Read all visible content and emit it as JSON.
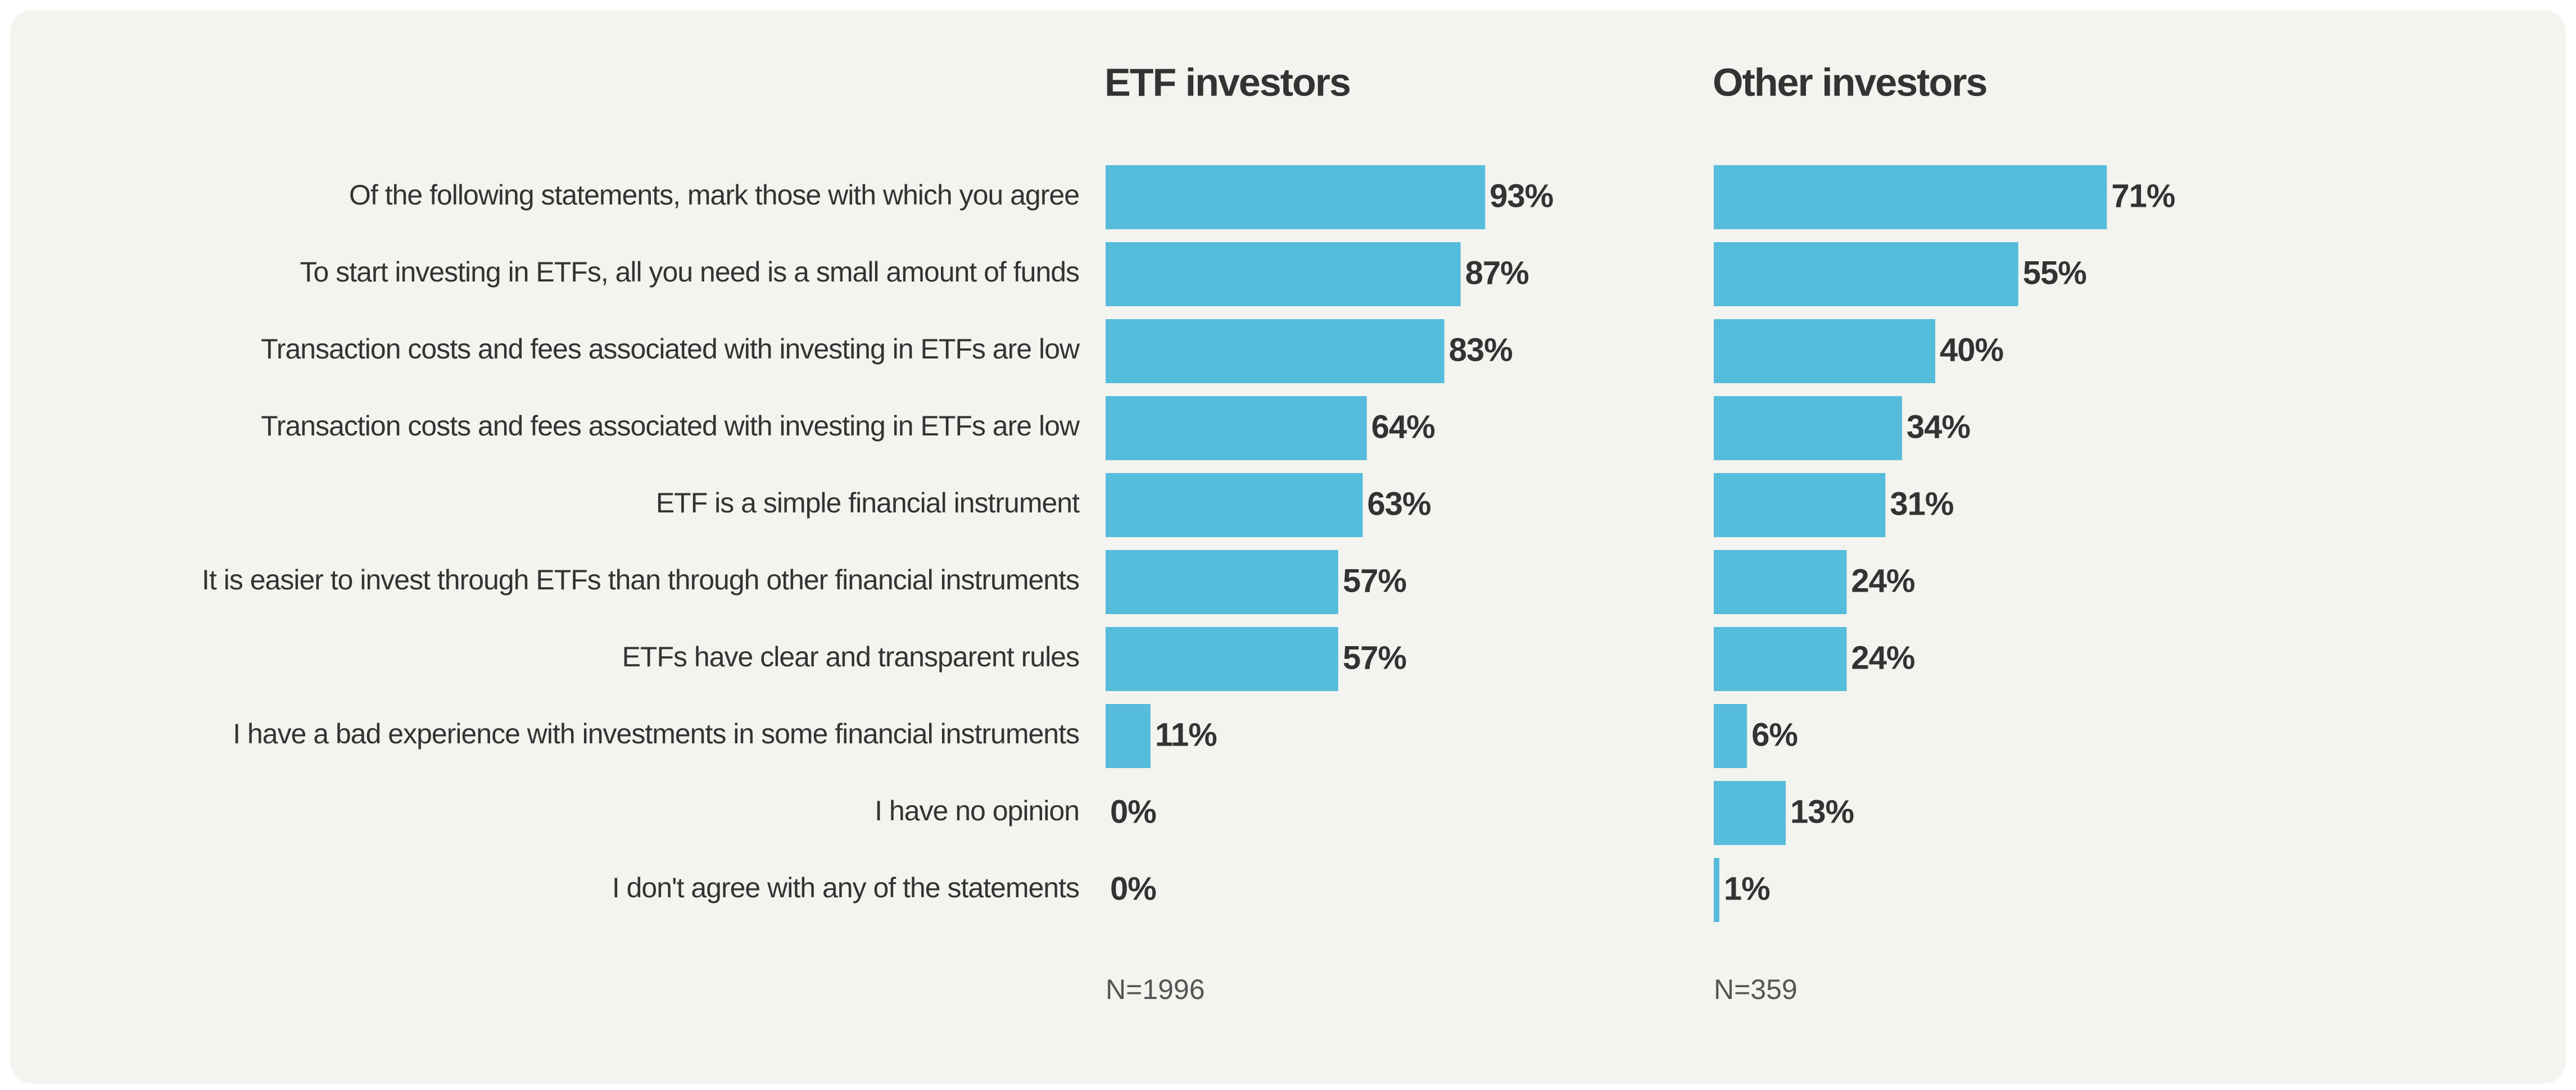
{
  "categories": [
    "Of the following statements, mark those with which you agree",
    "To start investing in ETFs, all you need is a small amount of funds",
    "Transaction costs and fees associated with investing in ETFs are low",
    "Transaction costs and fees associated with investing in ETFs are low",
    "ETF is a simple financial instrument",
    "It is easier to invest through ETFs than through other financial instruments",
    "ETFs have clear and transparent rules",
    "I have a bad experience with investments in some financial instruments",
    "I have no opinion",
    "I don't agree with any of the statements"
  ],
  "chart_data": [
    {
      "type": "bar",
      "orientation": "horizontal",
      "title": "ETF investors",
      "color": "#56bcdc",
      "values": [
        93,
        87,
        83,
        64,
        63,
        57,
        57,
        11,
        0,
        0
      ],
      "value_labels": [
        "93%",
        "87%",
        "83%",
        "64%",
        "63%",
        "57%",
        "57%",
        "11%",
        "0%",
        "0%"
      ],
      "note": "N=1996"
    },
    {
      "type": "bar",
      "orientation": "horizontal",
      "title": "Other investors",
      "color": "#56bcdc",
      "values": [
        71,
        55,
        40,
        34,
        31,
        24,
        24,
        6,
        13,
        1
      ],
      "value_labels": [
        "71%",
        "55%",
        "40%",
        "34%",
        "31%",
        "24%",
        "24%",
        "6%",
        "13%",
        "1%"
      ],
      "note": "N=359"
    }
  ]
}
